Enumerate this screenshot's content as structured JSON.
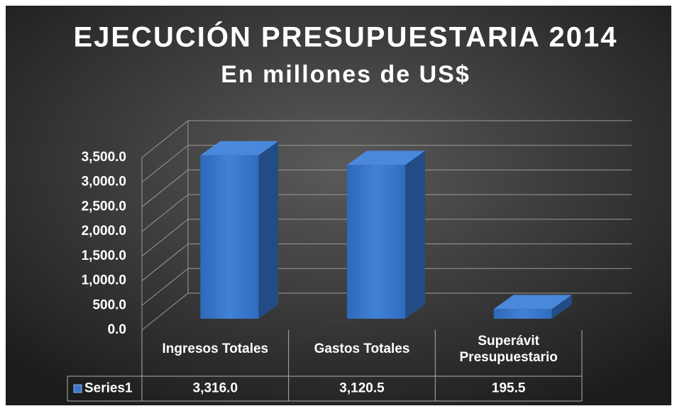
{
  "chart_data": {
    "type": "bar3d",
    "title": "EJECUCIÓN PRESUPUESTARIA 2014",
    "subtitle": "En millones de US$",
    "categories": [
      "Ingresos Totales",
      "Gastos Totales",
      "Superávit Presupuestario"
    ],
    "series": [
      {
        "name": "Series1",
        "color": "#3b78cc",
        "values": [
          3316.0,
          3120.5,
          195.5
        ],
        "value_labels": [
          "3,316.0",
          "3,120.5",
          "195.5"
        ]
      }
    ],
    "ylim": [
      0,
      3500
    ],
    "yticks": [
      {
        "value": 0,
        "label": "0.0"
      },
      {
        "value": 500,
        "label": "500.0"
      },
      {
        "value": 1000,
        "label": "1,000.0"
      },
      {
        "value": 1500,
        "label": "1,500.0"
      },
      {
        "value": 2000,
        "label": "2,000.0"
      },
      {
        "value": 2500,
        "label": "2,500.0"
      },
      {
        "value": 3000,
        "label": "3,000.0"
      },
      {
        "value": 3500,
        "label": "3,500.0"
      }
    ],
    "grid": true
  }
}
